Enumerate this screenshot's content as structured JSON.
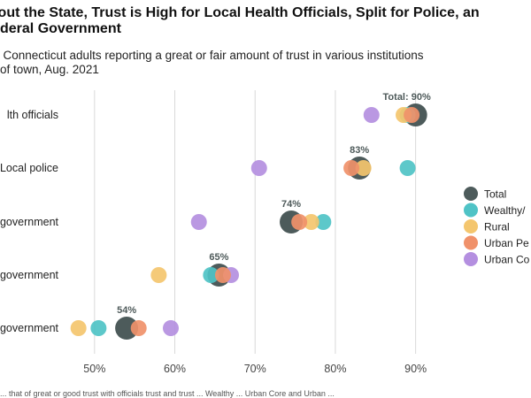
{
  "title_line1": "ghout the State, Trust is High for Local Health Officials, Split for Police, an",
  "title_line2": "deral Government",
  "subtitle_line1": "f Connecticut adults reporting a great or fair amount of trust in various institutions",
  "subtitle_line2": "of town, Aug. 2021",
  "colors": {
    "total": "#4d5b5b",
    "wealthy": "#4fc3c6",
    "rural": "#f4c66e",
    "urban_periphery": "#f0916a",
    "urban_core": "#b48fe0",
    "gridline": "#d9d9d9"
  },
  "chart_data": {
    "type": "scatter",
    "categories": [
      "lth officials",
      "Local police",
      "government",
      "government",
      "government"
    ],
    "x_ticks": [
      "50%",
      "60%",
      "70%",
      "80%",
      "90%"
    ],
    "x_tick_values": [
      50,
      60,
      70,
      80,
      90
    ],
    "xlim": [
      45.5,
      95
    ],
    "grid": true,
    "legend_position": "right",
    "series": [
      {
        "name": "Total",
        "key": "total",
        "values": [
          90,
          83,
          74.5,
          65.5,
          54
        ]
      },
      {
        "name": "Wealthy/",
        "key": "wealthy",
        "values": [
          89,
          89,
          78.5,
          64.5,
          50.5
        ]
      },
      {
        "name": "Rural",
        "key": "rural",
        "values": [
          88.5,
          83.5,
          77,
          58,
          48
        ]
      },
      {
        "name": "Urban Pe",
        "key": "urban_periphery",
        "values": [
          89.5,
          82,
          75.5,
          66,
          55.5
        ]
      },
      {
        "name": "Urban Co",
        "key": "urban_core",
        "values": [
          84.5,
          70.5,
          63,
          67,
          59.5
        ]
      }
    ],
    "total_labels": [
      "Total: 90%",
      "83%",
      "74%",
      "65%",
      "54%"
    ]
  },
  "footnote": "... that of great or good trust with officials trust and trust ... Wealthy ... Urban Core and Urban ..."
}
